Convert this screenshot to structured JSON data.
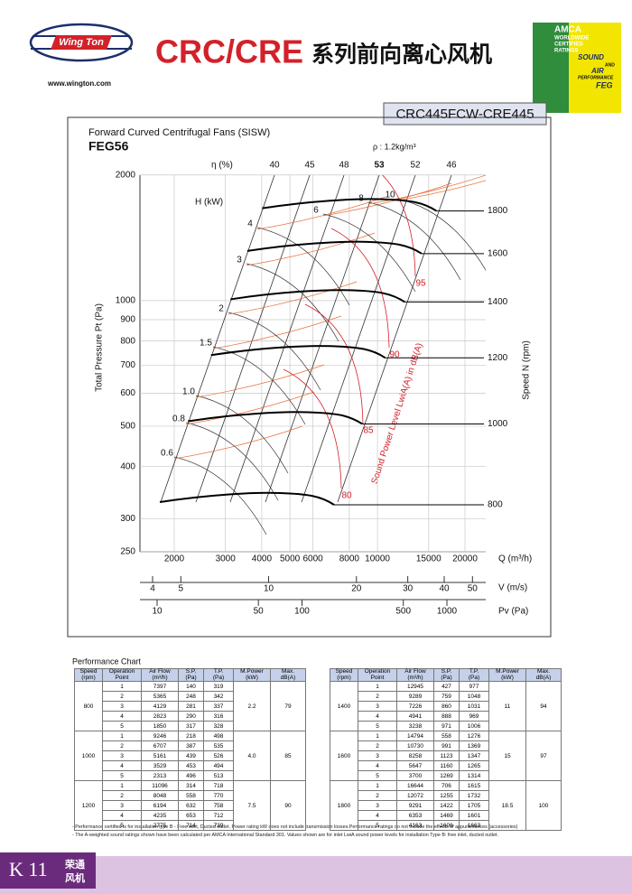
{
  "header": {
    "logo": "Wing Ton",
    "website": "www.wington.com",
    "title": "CRC/CRE",
    "title_cn": "系列前向离心风机",
    "model": "CRC445FCW-CRE445"
  },
  "badge": {
    "name": "AMCA",
    "lines": [
      "WORLDWIDE",
      "CERTIFIED",
      "RATINGS"
    ],
    "sound": "SOUND",
    "and": "AND",
    "air": "AIR",
    "performance": "PERFORMANCE",
    "feg": "FEG"
  },
  "chart": {
    "heading": "Forward Curved Centrifugal Fans (SISW)",
    "model": "FEG56",
    "density": "ρ : 1.2kg/m³",
    "pressure_axis": {
      "label": "Total Pressure Pt (Pa)",
      "ticks": [
        250,
        300,
        400,
        500,
        600,
        700,
        800,
        900,
        1000,
        2000
      ]
    },
    "flow_axis": {
      "label": "Q (m³/h)",
      "ticks": [
        2000,
        3000,
        4000,
        5000,
        6000,
        8000,
        10000,
        15000,
        20000
      ]
    },
    "velocity_axis": {
      "label": "V (m/s)",
      "ticks": [
        4,
        5,
        10,
        20,
        30,
        40,
        50
      ]
    },
    "pv_axis": {
      "label": "Pv (Pa)",
      "ticks": [
        10,
        50,
        100,
        500,
        1000
      ]
    },
    "speed": {
      "label": "Speed N (rpm)",
      "values": [
        800,
        1000,
        1200,
        1400,
        1600,
        1800
      ]
    },
    "efficiency": {
      "label": "η (%)",
      "values": [
        40,
        45,
        48,
        53,
        52,
        46
      ]
    },
    "power": {
      "label": "H (kW)",
      "values": [
        "0.6",
        "0.8",
        "1.0",
        "1.5",
        "2",
        "3",
        "4",
        "6",
        "8",
        "10"
      ]
    },
    "sound": {
      "label": "Sound Power Level LwiA(A) in dB(A)",
      "values": [
        80,
        85,
        90,
        95
      ]
    }
  },
  "performance": {
    "title": "Performance Chart",
    "columns": [
      [
        "Speed",
        "(rpm)"
      ],
      [
        "Operation",
        "Point"
      ],
      [
        "Air Flow",
        "(m³/h)"
      ],
      [
        "S.P.",
        "(Pa)"
      ],
      [
        "T.P.",
        "(Pa)"
      ],
      [
        "M.Power",
        "(kW)"
      ],
      [
        "Max.",
        "dB(A)"
      ]
    ],
    "tables": [
      {
        "groups": [
          {
            "speed": "800",
            "power": "2.2",
            "max_db": "79",
            "rows": [
              [
                "1",
                "7397",
                "140",
                "319"
              ],
              [
                "2",
                "5365",
                "248",
                "342"
              ],
              [
                "3",
                "4129",
                "281",
                "337"
              ],
              [
                "4",
                "2823",
                "290",
                "316"
              ],
              [
                "5",
                "1850",
                "317",
                "328"
              ]
            ]
          },
          {
            "speed": "1000",
            "power": "4.0",
            "max_db": "85",
            "rows": [
              [
                "1",
                "9246",
                "218",
                "498"
              ],
              [
                "2",
                "6707",
                "387",
                "535"
              ],
              [
                "3",
                "5161",
                "439",
                "526"
              ],
              [
                "4",
                "3529",
                "453",
                "494"
              ],
              [
                "5",
                "2313",
                "496",
                "513"
              ]
            ]
          },
          {
            "speed": "1200",
            "power": "7.5",
            "max_db": "90",
            "rows": [
              [
                "1",
                "11096",
                "314",
                "718"
              ],
              [
                "2",
                "8048",
                "558",
                "770"
              ],
              [
                "3",
                "6194",
                "632",
                "758"
              ],
              [
                "4",
                "4235",
                "653",
                "712"
              ],
              [
                "5",
                "2775",
                "714",
                "739"
              ]
            ]
          }
        ]
      },
      {
        "groups": [
          {
            "speed": "1400",
            "power": "11",
            "max_db": "94",
            "rows": [
              [
                "1",
                "12945",
                "427",
                "977"
              ],
              [
                "2",
                "9289",
                "759",
                "1048"
              ],
              [
                "3",
                "7226",
                "860",
                "1031"
              ],
              [
                "4",
                "4941",
                "888",
                "969"
              ],
              [
                "5",
                "3238",
                "971",
                "1006"
              ]
            ]
          },
          {
            "speed": "1600",
            "power": "15",
            "max_db": "97",
            "rows": [
              [
                "1",
                "14794",
                "558",
                "1276"
              ],
              [
                "2",
                "10730",
                "991",
                "1369"
              ],
              [
                "3",
                "8258",
                "1123",
                "1347"
              ],
              [
                "4",
                "5647",
                "1160",
                "1265"
              ],
              [
                "5",
                "3700",
                "1269",
                "1314"
              ]
            ]
          },
          {
            "speed": "1800",
            "power": "18.5",
            "max_db": "100",
            "rows": [
              [
                "1",
                "16644",
                "706",
                "1615"
              ],
              [
                "2",
                "12072",
                "1255",
                "1732"
              ],
              [
                "3",
                "9291",
                "1422",
                "1705"
              ],
              [
                "4",
                "6353",
                "1469",
                "1601"
              ],
              [
                "5",
                "4163",
                "1606",
                "1663"
              ]
            ]
          }
        ]
      }
    ]
  },
  "notes": [
    "- Performance certified is for installation type B - Free inlet, Ducted outlet. Power rating kW does not include transmission losses.Performance ratings do not include the effects of appurtenances (accessories)",
    "- The A-weighted sound ratings shown have been calculated per AMCA International Standard 301. Values shown are for inlet LwiA sound power levels for installation Type B: free inlet, ducted outlet."
  ],
  "footer": {
    "code": "K 11",
    "brand_top": "荣通",
    "brand_bottom": "风机"
  }
}
